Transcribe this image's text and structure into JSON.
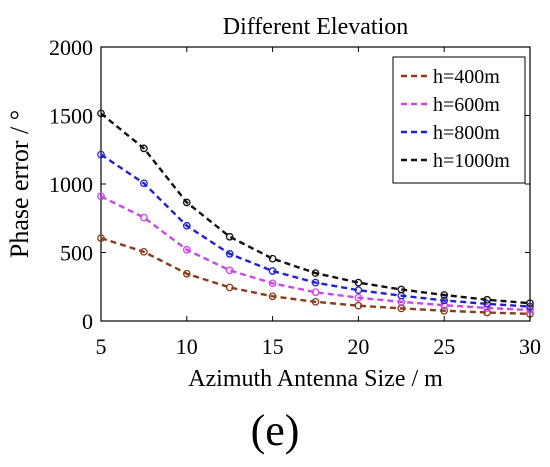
{
  "chart_data": {
    "type": "line",
    "title": "Different Elevation",
    "xlabel": "Azimuth Antenna Size / m",
    "ylabel": "Phase error / °",
    "xlim": [
      5,
      30
    ],
    "ylim": [
      0,
      2000
    ],
    "xticks": [
      5,
      10,
      15,
      20,
      25,
      30
    ],
    "yticks": [
      0,
      500,
      1000,
      1500,
      2000
    ],
    "grid": false,
    "legend_position": "top-right",
    "x": [
      5,
      7.5,
      10,
      12.5,
      15,
      17.5,
      20,
      22.5,
      25,
      27.5,
      30
    ],
    "series": [
      {
        "name": "h=400m",
        "color": "#8b3a1a",
        "values": [
          605,
          505,
          345,
          245,
          180,
          140,
          112,
          92,
          75,
          62,
          52
        ]
      },
      {
        "name": "h=600m",
        "color": "#cc44ee",
        "values": [
          910,
          755,
          520,
          370,
          275,
          210,
          170,
          140,
          115,
          95,
          80
        ]
      },
      {
        "name": "h=800m",
        "color": "#1f1fd6",
        "values": [
          1215,
          1005,
          695,
          490,
          365,
          280,
          225,
          185,
          150,
          125,
          105
        ]
      },
      {
        "name": "h=1000m",
        "color": "#111111",
        "values": [
          1515,
          1260,
          865,
          615,
          455,
          350,
          280,
          230,
          190,
          155,
          130
        ]
      }
    ]
  },
  "panel_label": "(e)"
}
